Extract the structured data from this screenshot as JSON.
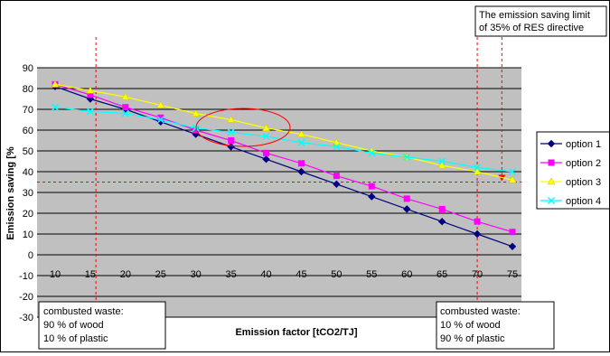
{
  "chart_data": {
    "type": "line",
    "title": "",
    "xlabel": "Emission factor [tCO2/TJ]",
    "ylabel": "Emission saving [%",
    "x": [
      10,
      15,
      20,
      25,
      30,
      35,
      40,
      45,
      50,
      55,
      60,
      65,
      70,
      75
    ],
    "x_ticks": [
      "10",
      "15",
      "20",
      "25",
      "30",
      "35",
      "40",
      "45",
      "50",
      "55",
      "60",
      "65",
      "70",
      "75"
    ],
    "ylim": [
      -30,
      90
    ],
    "y_ticks": [
      "90",
      "80",
      "70",
      "60",
      "50",
      "40",
      "30",
      "20",
      "10",
      "0",
      "-10",
      "-20",
      "-30"
    ],
    "y_tick_values": [
      90,
      80,
      70,
      60,
      50,
      40,
      30,
      20,
      10,
      0,
      -10,
      -20,
      -30
    ],
    "grid": true,
    "plot_background": "#c0c0c0",
    "legend_position": "right",
    "series": [
      {
        "name": "option 1",
        "color": "#000080",
        "marker": "diamond",
        "values": [
          81,
          75,
          70,
          64,
          58,
          52,
          46,
          40,
          34,
          28,
          22,
          16,
          10,
          4
        ]
      },
      {
        "name": "option 2",
        "color": "#ff00ff",
        "marker": "square",
        "values": [
          82,
          77,
          71,
          66,
          60,
          55,
          49,
          44,
          38,
          33,
          27,
          22,
          16,
          11
        ]
      },
      {
        "name": "option 3",
        "color": "#ffff00",
        "marker": "triangle",
        "values": [
          82,
          79,
          76,
          72,
          68,
          65,
          61,
          58,
          54,
          50,
          47,
          43,
          40,
          36
        ]
      },
      {
        "name": "option 4",
        "color": "#00ffff",
        "marker": "x",
        "values": [
          71,
          69,
          68,
          65,
          61,
          59,
          57,
          54,
          52,
          49,
          47,
          45,
          42,
          40
        ]
      }
    ],
    "threshold_line": {
      "y": 35,
      "color": "#ff0000"
    },
    "vertical_markers": [
      {
        "x": 15.8,
        "color": "#ff0000"
      },
      {
        "x": 70,
        "color": "#ff0000"
      }
    ],
    "annotations": {
      "limit_lines": [
        "The emission saving limit",
        "of 35% of RES directive"
      ],
      "left_box_lines": [
        "combusted waste:",
        "90 % of wood",
        "10 % of plastic"
      ],
      "right_box_lines": [
        "combusted waste:",
        "10 % of wood",
        "90 % of plastic"
      ]
    }
  }
}
